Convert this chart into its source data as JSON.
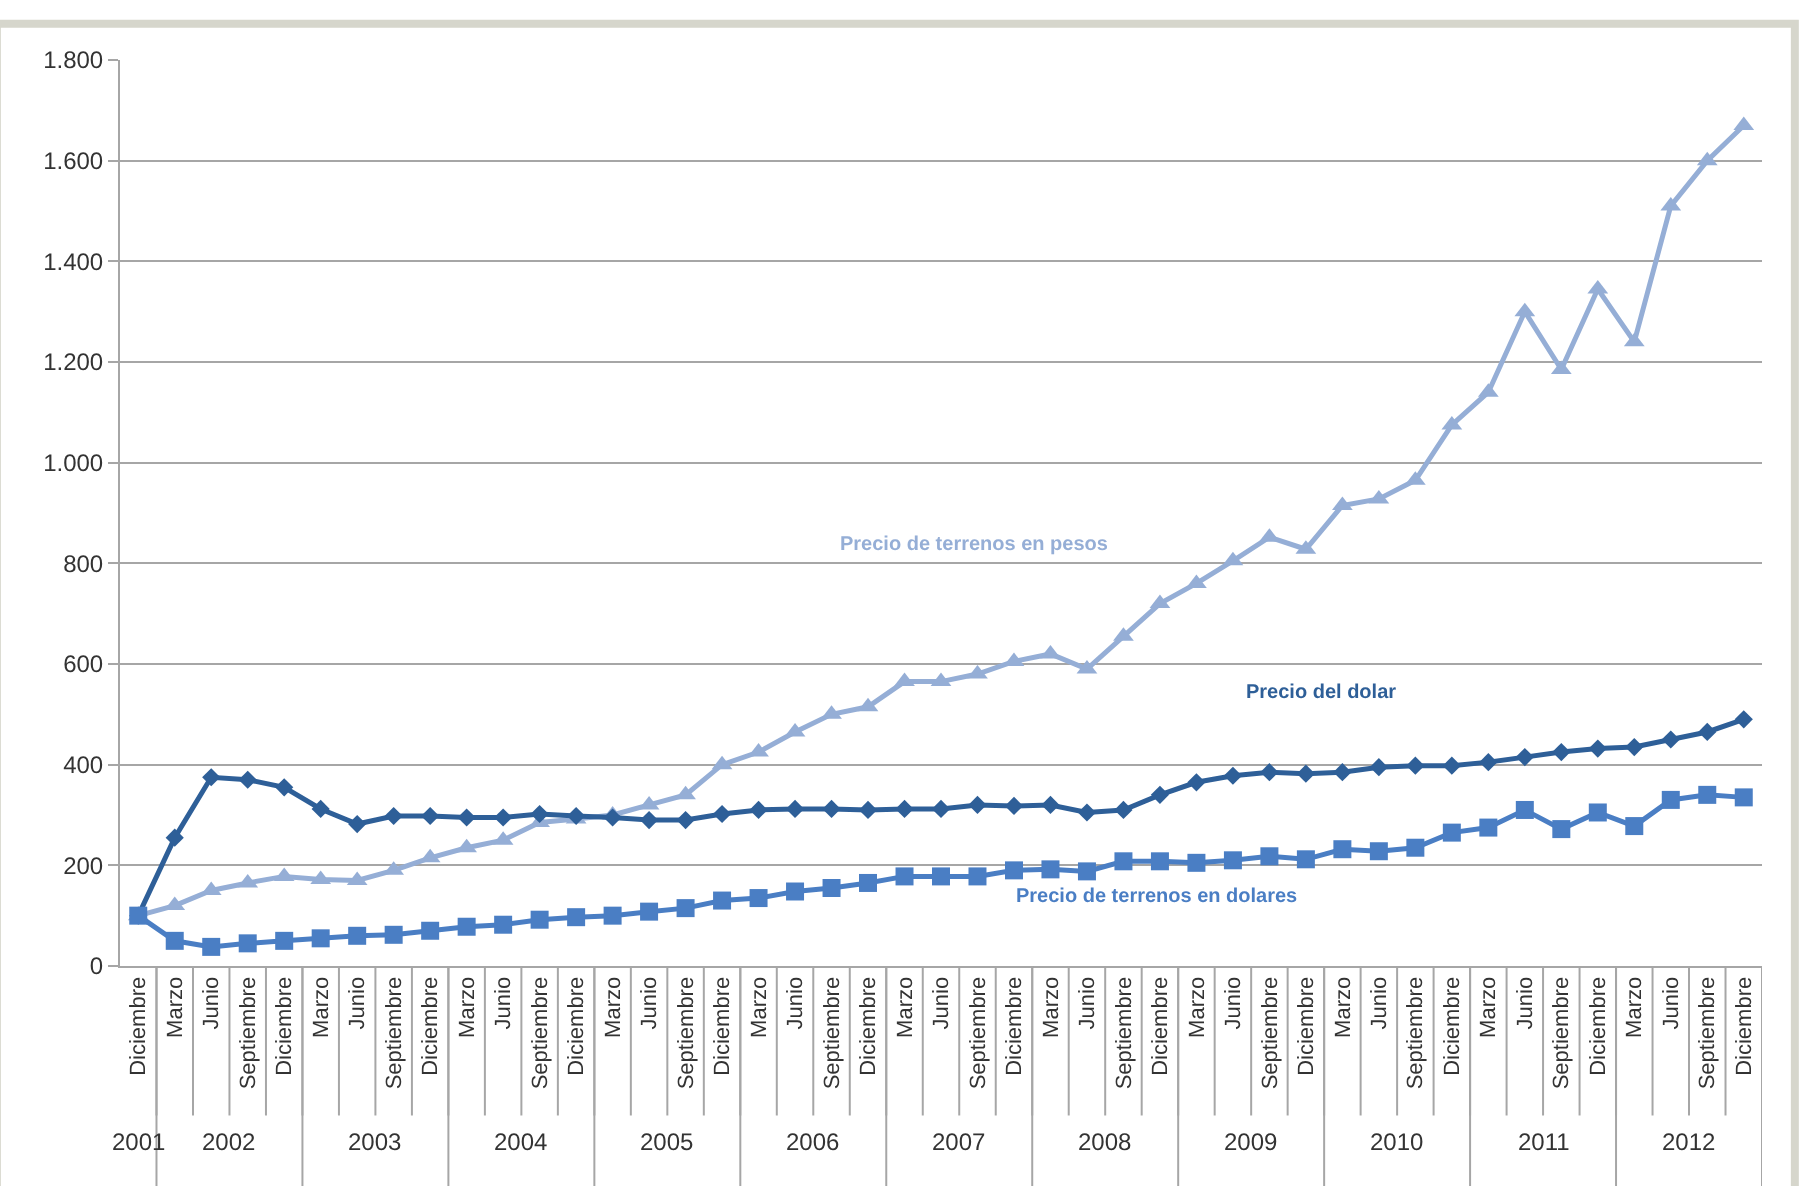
{
  "chart_data": {
    "type": "line",
    "categories": [
      "Diciembre",
      "Marzo",
      "Junio",
      "Septiembre",
      "Diciembre",
      "Marzo",
      "Junio",
      "Septiembre",
      "Diciembre",
      "Marzo",
      "Junio",
      "Septiembre",
      "Diciembre",
      "Marzo",
      "Junio",
      "Septiembre",
      "Diciembre",
      "Marzo",
      "Junio",
      "Septiembre",
      "Diciembre",
      "Marzo",
      "Junio",
      "Septiembre",
      "Diciembre",
      "Marzo",
      "Junio",
      "Septiembre",
      "Diciembre",
      "Marzo",
      "Junio",
      "Septiembre",
      "Diciembre",
      "Marzo",
      "Junio",
      "Septiembre",
      "Diciembre",
      "Marzo",
      "Junio",
      "Septiembre",
      "Diciembre",
      "Marzo",
      "Junio",
      "Septiembre",
      "Diciembre"
    ],
    "series": [
      {
        "name": "Precio de terrenos en pesos",
        "color": "#95aed6",
        "marker": "triangle",
        "values": [
          100,
          120,
          150,
          165,
          178,
          172,
          170,
          190,
          215,
          235,
          250,
          285,
          292,
          300,
          320,
          340,
          400,
          425,
          465,
          500,
          515,
          565,
          565,
          580,
          605,
          620,
          590,
          655,
          720,
          760,
          805,
          852,
          828,
          915,
          928,
          965,
          1075,
          1140,
          1300,
          1185,
          1345,
          1240,
          1510,
          1600,
          1670
        ]
      },
      {
        "name": "Precio del dolar",
        "color": "#2e5f98",
        "marker": "diamond",
        "values": [
          100,
          255,
          375,
          370,
          355,
          312,
          282,
          298,
          298,
          295,
          295,
          302,
          298,
          295,
          290,
          290,
          302,
          310,
          312,
          312,
          310,
          312,
          312,
          320,
          318,
          320,
          305,
          310,
          340,
          365,
          378,
          385,
          382,
          385,
          395,
          398,
          398,
          405,
          415,
          425,
          432,
          435,
          450,
          465,
          490
        ]
      },
      {
        "name": "Precio de terrenos en dolares",
        "color": "#4a7ec4",
        "marker": "square",
        "values": [
          100,
          50,
          38,
          45,
          50,
          55,
          60,
          62,
          70,
          78,
          82,
          92,
          97,
          100,
          108,
          115,
          130,
          135,
          148,
          155,
          165,
          178,
          178,
          178,
          190,
          192,
          188,
          208,
          208,
          205,
          210,
          218,
          212,
          232,
          228,
          235,
          265,
          275,
          310,
          272,
          305,
          278,
          330,
          340,
          335
        ]
      }
    ],
    "annotations": [
      "2001",
      "2002",
      "2003",
      "2004",
      "2005",
      "2006",
      "2007",
      "2008",
      "2009",
      "2010",
      "2011",
      "2012"
    ],
    "ylim": [
      0,
      1800
    ],
    "yticks": [
      0,
      {
        "value": 200,
        "label": "200"
      },
      {
        "value": 400,
        "label": "400"
      },
      {
        "value": 600,
        "label": "600"
      },
      {
        "value": 800,
        "label": "800"
      },
      {
        "value": 1000,
        "label": "1.000"
      },
      {
        "value": 1200,
        "label": "1.200"
      },
      {
        "value": 1400,
        "label": "1.400"
      },
      {
        "value": 1600,
        "label": "1.600"
      },
      {
        "value": 1800,
        "label": "1.800"
      }
    ],
    "grid": "y",
    "legend": false,
    "line_style": "solid"
  }
}
